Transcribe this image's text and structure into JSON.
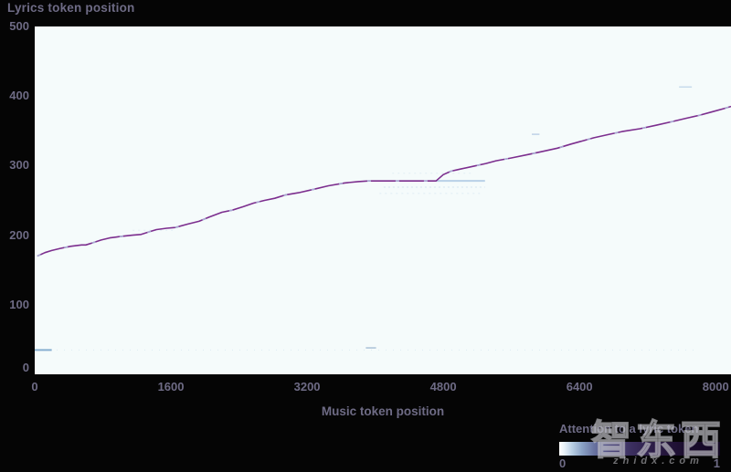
{
  "title": "Lyrics token position",
  "x_axis_label": "Music token position",
  "legend": {
    "label": "Attention to a lyric token",
    "min_label": "0",
    "max_label": "1"
  },
  "watermark": {
    "logo_text": "智东西",
    "site_text": "zhidx.com"
  },
  "colors": {
    "background": "#050505",
    "plot_background": "#f5fbfb",
    "text": "#6e6b85",
    "line": "#7c2e8e",
    "line_highlight": "#b7d0e8",
    "colorbar_stops": [
      "#ffffff 0%",
      "#eaf2f8 3%",
      "#b9cfe4 8%",
      "#8ba3c6 14%",
      "#67719f 22%",
      "#4f4a7e 32%",
      "#3b2f5f 45%",
      "#2a1b44 60%",
      "#1b0d2e 78%",
      "#120722 100%"
    ]
  },
  "chart_data": {
    "type": "heatmap",
    "title": "Lyrics token position",
    "xlabel": "Music token position",
    "ylabel": "Lyrics token position",
    "xlim": [
      0,
      8180
    ],
    "ylim": [
      0,
      500
    ],
    "x_ticks": [
      0,
      1600,
      3200,
      4800,
      6400,
      8000
    ],
    "y_ticks": [
      0,
      100,
      200,
      300,
      400,
      500
    ],
    "grid": false,
    "legend_position": "bottom-right",
    "colorbar": {
      "label": "Attention to a lyric token",
      "range": [
        0,
        1
      ],
      "low_color": "#ffffff",
      "high_color": "#120722"
    },
    "alignment_path": [
      [
        30,
        170
      ],
      [
        120,
        175
      ],
      [
        200,
        178
      ],
      [
        300,
        181
      ],
      [
        420,
        184
      ],
      [
        550,
        186
      ],
      [
        600,
        186
      ],
      [
        680,
        189
      ],
      [
        780,
        193
      ],
      [
        880,
        196
      ],
      [
        1000,
        198
      ],
      [
        1150,
        200
      ],
      [
        1250,
        201
      ],
      [
        1350,
        205
      ],
      [
        1430,
        208
      ],
      [
        1550,
        210
      ],
      [
        1650,
        211
      ],
      [
        1800,
        216
      ],
      [
        1930,
        220
      ],
      [
        2050,
        226
      ],
      [
        2200,
        233
      ],
      [
        2320,
        236
      ],
      [
        2450,
        241
      ],
      [
        2570,
        246
      ],
      [
        2700,
        250
      ],
      [
        2820,
        253
      ],
      [
        2950,
        258
      ],
      [
        3100,
        261
      ],
      [
        3280,
        266
      ],
      [
        3450,
        271
      ],
      [
        3640,
        275
      ],
      [
        3800,
        277
      ],
      [
        3920,
        278
      ],
      [
        4715,
        278
      ],
      [
        4800,
        287
      ],
      [
        4890,
        292
      ],
      [
        5000,
        295
      ],
      [
        5150,
        299
      ],
      [
        5300,
        303
      ],
      [
        5420,
        307
      ],
      [
        5600,
        311
      ],
      [
        5800,
        316
      ],
      [
        5950,
        320
      ],
      [
        6140,
        325
      ],
      [
        6300,
        331
      ],
      [
        6450,
        336
      ],
      [
        6570,
        340
      ],
      [
        6750,
        345
      ],
      [
        6900,
        349
      ],
      [
        7110,
        353
      ],
      [
        7300,
        358
      ],
      [
        7480,
        363
      ],
      [
        7650,
        368
      ],
      [
        7800,
        372
      ],
      [
        7950,
        377
      ],
      [
        8100,
        382
      ],
      [
        8180,
        385
      ]
    ],
    "faint_marks": [
      {
        "t0": 0,
        "t1": 7750,
        "L": 35,
        "color": "#9fc2dd",
        "opacity": 0.28,
        "dash": "1 7",
        "width": 1
      },
      {
        "t0": 0,
        "t1": 200,
        "L": 35,
        "color": "#7ba6cc",
        "opacity": 0.9,
        "dash": "",
        "width": 2
      },
      {
        "t0": 3890,
        "t1": 4010,
        "L": 38,
        "color": "#8aa8c8",
        "opacity": 0.7,
        "dash": "",
        "width": 1.5
      },
      {
        "t0": 4715,
        "t1": 5290,
        "L": 278,
        "color": "#a9c6e2",
        "opacity": 0.8,
        "dash": "",
        "width": 2
      },
      {
        "t0": 4100,
        "t1": 5290,
        "L": 269,
        "color": "#bcd4ea",
        "opacity": 0.55,
        "dash": "2 3",
        "width": 1
      },
      {
        "t0": 4050,
        "t1": 5230,
        "L": 260,
        "color": "#c6dbee",
        "opacity": 0.45,
        "dash": "2 4",
        "width": 1
      },
      {
        "t0": 4200,
        "t1": 5150,
        "L": 289,
        "color": "#c6dbee",
        "opacity": 0.4,
        "dash": "2 4",
        "width": 1
      },
      {
        "t0": 1150,
        "t1": 1650,
        "L": 207,
        "color": "#c6dbee",
        "opacity": 0.4,
        "dash": "2 4",
        "width": 1
      },
      {
        "t0": 5840,
        "t1": 5930,
        "L": 345,
        "color": "#9bb8d8",
        "opacity": 0.6,
        "dash": "",
        "width": 1.5
      },
      {
        "t0": 7570,
        "t1": 7720,
        "L": 413,
        "color": "#a9c6e2",
        "opacity": 0.6,
        "dash": "",
        "width": 1.5
      }
    ]
  }
}
